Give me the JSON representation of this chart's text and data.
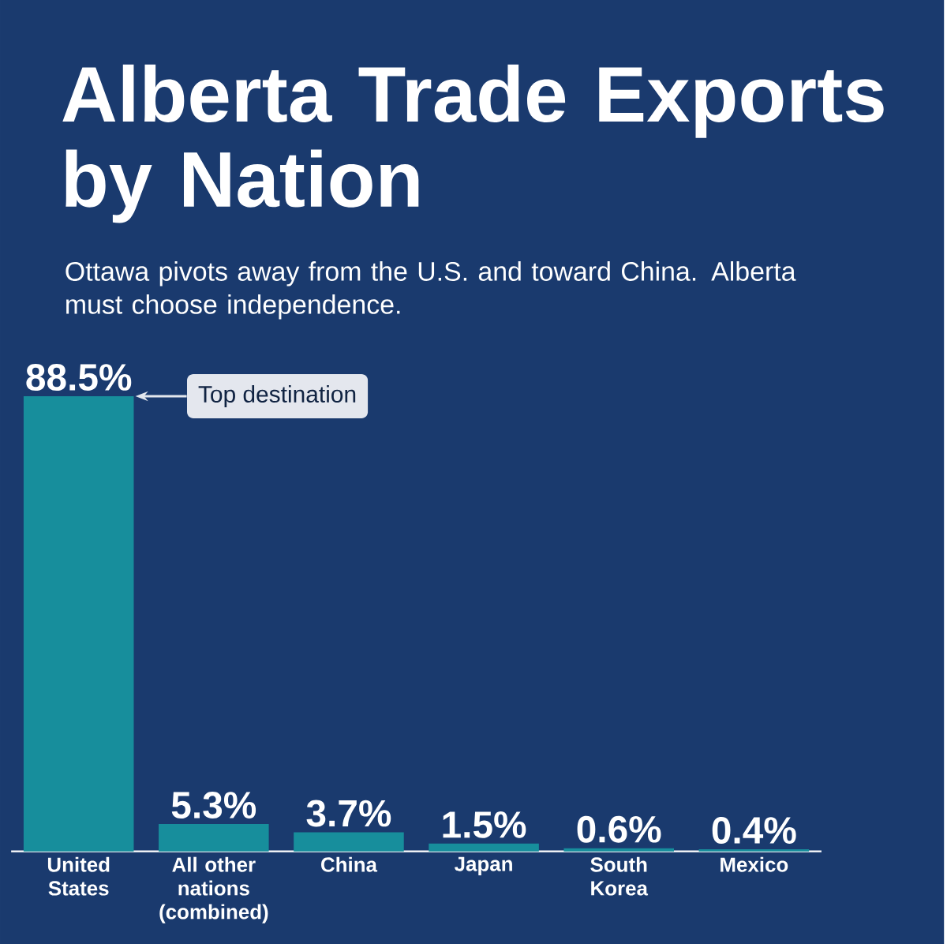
{
  "chart_data": {
    "type": "bar",
    "title": "Alberta Trade Exports by Nation",
    "subtitle": "Ottawa pivots away from the U.S. and toward China. Alberta must choose independence.",
    "categories": [
      "United States",
      "All other nations (combined)",
      "China",
      "Japan",
      "South Korea",
      "Mexico"
    ],
    "values": [
      88.5,
      5.3,
      3.7,
      1.5,
      0.6,
      0.4
    ],
    "value_labels": [
      "88.5%",
      "5.3%",
      "3.7%",
      "1.5%",
      "0.6%",
      "0.4%"
    ],
    "color": "#178e9c",
    "annotations": [
      "Top destination"
    ]
  }
}
